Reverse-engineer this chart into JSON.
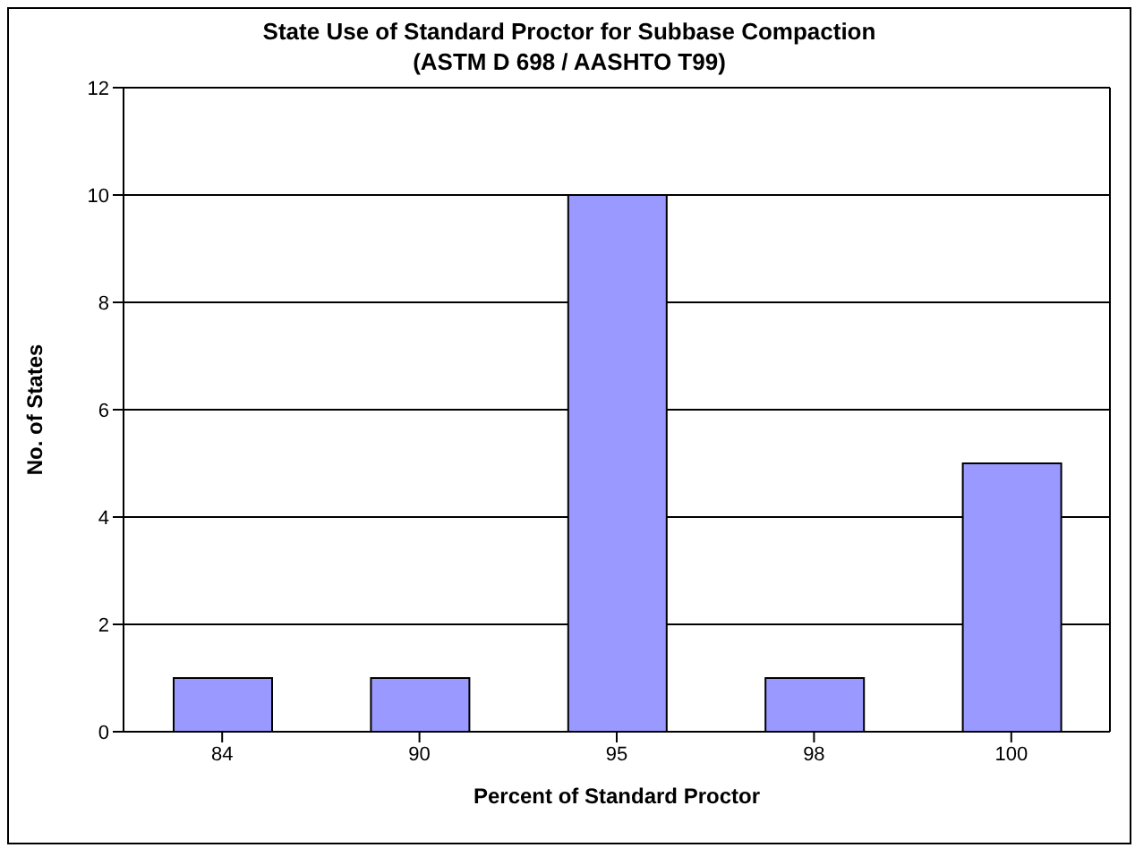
{
  "chart_data": {
    "type": "bar",
    "title": "State Use of Standard Proctor for Subbase Compaction\n(ASTM D 698 / AASHTO T99)",
    "xlabel": "Percent of Standard Proctor",
    "ylabel": "No. of States",
    "categories": [
      "84",
      "90",
      "95",
      "98",
      "100"
    ],
    "values": [
      1,
      1,
      10,
      1,
      5
    ],
    "color": "#9999ff",
    "ylim": [
      0,
      12
    ],
    "yticks": [
      0,
      2,
      4,
      6,
      8,
      10,
      12
    ],
    "grid": "y",
    "legend": false
  }
}
